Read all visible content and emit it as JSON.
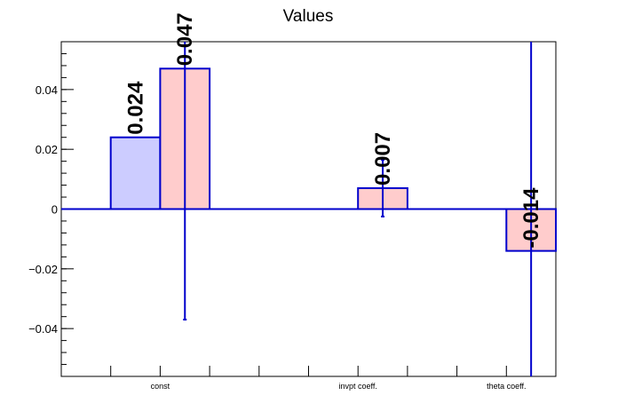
{
  "chart_data": {
    "type": "bar",
    "title": "Values",
    "xlabel": "",
    "ylabel": "",
    "categories": [
      "const",
      "invpt coeff.",
      "theta coeff."
    ],
    "ylim": [
      -0.056,
      0.056
    ],
    "yticks": [
      -0.04,
      -0.02,
      0,
      0.02,
      0.04
    ],
    "ytick_labels": [
      "−0.04",
      "−0.02",
      "0",
      "0.02",
      "0.04"
    ],
    "grid": false,
    "legend": "none",
    "series": [
      {
        "values": [
          0.024,
          null,
          null
        ],
        "errors": [
          null,
          null,
          null
        ],
        "labels": [
          "0.024",
          null,
          null
        ],
        "color": "#ccccff",
        "edge_color": "#0000cc"
      },
      {
        "values": [
          0.047,
          0.007,
          -0.014
        ],
        "errors": [
          0.084,
          0.0095,
          0.09
        ],
        "labels": [
          "0.047",
          "0.007",
          "-0.014"
        ],
        "color": "#ffcccc",
        "edge_color": "#0000cc"
      }
    ]
  }
}
